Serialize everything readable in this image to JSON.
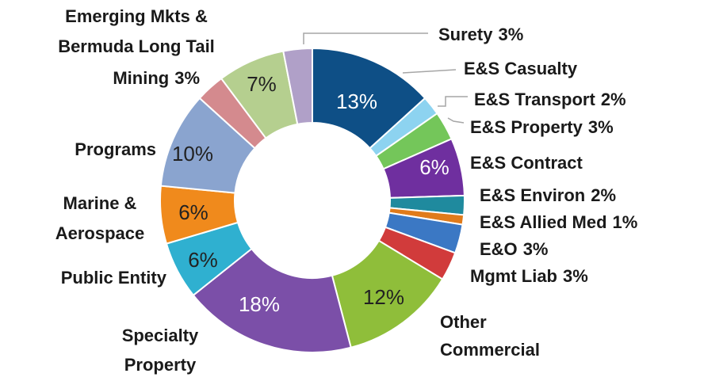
{
  "chart_data": {
    "type": "donut",
    "categories": [
      [
        "E&S Casualty"
      ],
      [
        "E&S Transport"
      ],
      [
        "E&S Property"
      ],
      [
        "E&S Contract"
      ],
      [
        "E&S Environ"
      ],
      [
        "E&S Allied Med"
      ],
      [
        "E&O"
      ],
      [
        "Mgmt Liab"
      ],
      [
        "Other",
        "Commercial"
      ],
      [
        "Specialty",
        "Property"
      ],
      [
        "Public Entity"
      ],
      [
        "Marine &",
        "Aerospace"
      ],
      [
        "Programs"
      ],
      [
        "Mining"
      ],
      [
        "Emerging Mkts &",
        "Bermuda Long Tail"
      ],
      [
        "Surety"
      ]
    ],
    "values": [
      13,
      2,
      3,
      6,
      2,
      1,
      3,
      3,
      12,
      18,
      6,
      6,
      10,
      3,
      7,
      3
    ],
    "value_labels": [
      "13%",
      "2%",
      "3%",
      "6%",
      "2%",
      "1%",
      "3%",
      "3%",
      "12%",
      "18%",
      "6%",
      "6%",
      "10%",
      "3%",
      "7%",
      "3%"
    ],
    "colors": [
      "#0e4f86",
      "#8dd3f0",
      "#74c65a",
      "#6f2f9f",
      "#1f8a9e",
      "#e07b1b",
      "#3b78c4",
      "#d13b3b",
      "#8fbe3a",
      "#7b4fa8",
      "#2fb0d0",
      "#f08a1c",
      "#8aa4cf",
      "#d48a8e",
      "#b5cf8f",
      "#b0a0c8"
    ]
  }
}
